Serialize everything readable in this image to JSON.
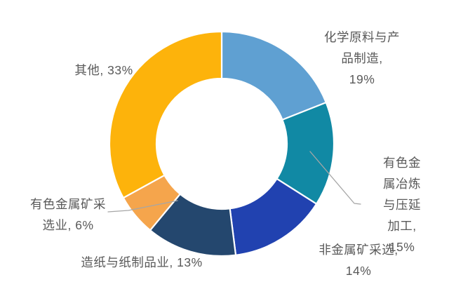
{
  "chart_data": {
    "type": "pie",
    "subtype": "donut",
    "title": "",
    "categories": [
      "化学原料与产品制造",
      "有色金属冶炼与压延加工",
      "非金属矿采选",
      "造纸与纸制品业",
      "有色金属矿采选业",
      "其他"
    ],
    "values": [
      19,
      15,
      14,
      13,
      6,
      33
    ],
    "unit": "%",
    "colors": [
      "#5FA0D2",
      "#1189A4",
      "#2142B0",
      "#24476E",
      "#F5A54C",
      "#FDB30B"
    ],
    "start_angle_deg": 0,
    "direction": "clockwise",
    "legend": "none",
    "data_labels": "outside",
    "background": "#FFFFFF",
    "label_color": "#595959",
    "leader_line_color": "#A6A6A6",
    "slice_gap_color": "#FFFFFF"
  },
  "slice_labels": {
    "chemical": "化学原料与产品制造,\n19%",
    "smelting": "有色金属冶炼\n与压延加工,\n15%",
    "nonmetal": "非金属矿采选, 14%",
    "paper": "造纸与纸制品业, 13%",
    "mining": "有色金属矿采\n选业, 6%",
    "other": "其他, 33%"
  }
}
